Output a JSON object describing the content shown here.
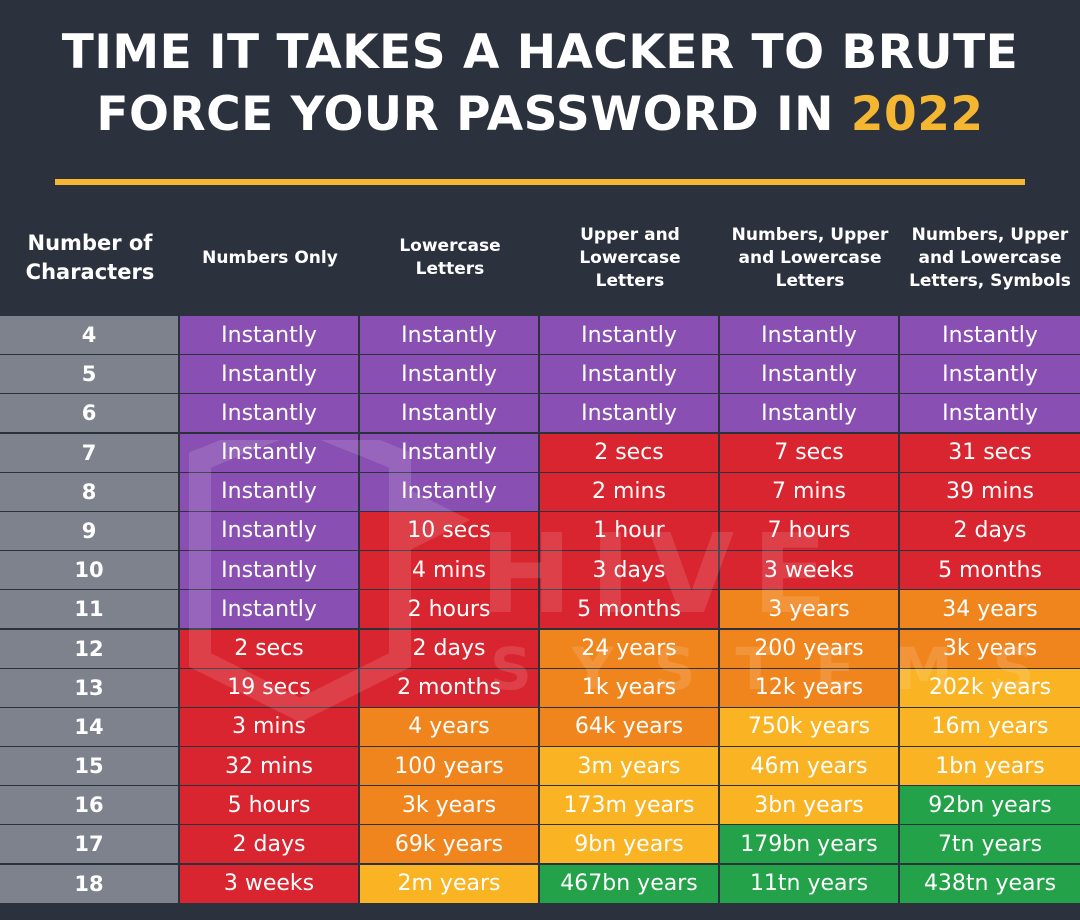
{
  "title": {
    "line1": "TIME IT TAKES A HACKER TO BRUTE",
    "line2": "FORCE YOUR PASSWORD IN",
    "year": "2022"
  },
  "watermark": {
    "brand": "HIVE",
    "sub": "SYSTEMS"
  },
  "colors": {
    "Instantly": "#8a4fb3",
    "red": "#d9252f",
    "orange": "#f0851e",
    "yellow": "#f9b323",
    "green": "#23a24a",
    "header_bg": "#2c313e",
    "accent": "#f5b731"
  },
  "table": {
    "columns": [
      "Number of\nCharacters",
      "Numbers Only",
      "Lowercase\nLetters",
      "Upper and\nLowercase\nLetters",
      "Numbers, Upper\nand Lowercase\nLetters",
      "Numbers, Upper\nand Lowercase\nLetters, Symbols"
    ],
    "rows": [
      {
        "n": "4",
        "cells": [
          {
            "t": "Instantly",
            "c": "purple"
          },
          {
            "t": "Instantly",
            "c": "purple"
          },
          {
            "t": "Instantly",
            "c": "purple"
          },
          {
            "t": "Instantly",
            "c": "purple"
          },
          {
            "t": "Instantly",
            "c": "purple"
          }
        ]
      },
      {
        "n": "5",
        "cells": [
          {
            "t": "Instantly",
            "c": "purple"
          },
          {
            "t": "Instantly",
            "c": "purple"
          },
          {
            "t": "Instantly",
            "c": "purple"
          },
          {
            "t": "Instantly",
            "c": "purple"
          },
          {
            "t": "Instantly",
            "c": "purple"
          }
        ]
      },
      {
        "n": "6",
        "cells": [
          {
            "t": "Instantly",
            "c": "purple"
          },
          {
            "t": "Instantly",
            "c": "purple"
          },
          {
            "t": "Instantly",
            "c": "purple"
          },
          {
            "t": "Instantly",
            "c": "purple"
          },
          {
            "t": "Instantly",
            "c": "purple"
          }
        ]
      },
      {
        "n": "7",
        "cells": [
          {
            "t": "Instantly",
            "c": "purple"
          },
          {
            "t": "Instantly",
            "c": "purple"
          },
          {
            "t": "2 secs",
            "c": "red"
          },
          {
            "t": "7 secs",
            "c": "red"
          },
          {
            "t": "31 secs",
            "c": "red"
          }
        ]
      },
      {
        "n": "8",
        "cells": [
          {
            "t": "Instantly",
            "c": "purple"
          },
          {
            "t": "Instantly",
            "c": "purple"
          },
          {
            "t": "2 mins",
            "c": "red"
          },
          {
            "t": "7 mins",
            "c": "red"
          },
          {
            "t": "39 mins",
            "c": "red"
          }
        ]
      },
      {
        "n": "9",
        "cells": [
          {
            "t": "Instantly",
            "c": "purple"
          },
          {
            "t": "10 secs",
            "c": "red"
          },
          {
            "t": "1 hour",
            "c": "red"
          },
          {
            "t": "7 hours",
            "c": "red"
          },
          {
            "t": "2 days",
            "c": "red"
          }
        ]
      },
      {
        "n": "10",
        "cells": [
          {
            "t": "Instantly",
            "c": "purple"
          },
          {
            "t": "4 mins",
            "c": "red"
          },
          {
            "t": "3 days",
            "c": "red"
          },
          {
            "t": "3 weeks",
            "c": "red"
          },
          {
            "t": "5 months",
            "c": "red"
          }
        ]
      },
      {
        "n": "11",
        "cells": [
          {
            "t": "Instantly",
            "c": "purple"
          },
          {
            "t": "2 hours",
            "c": "red"
          },
          {
            "t": "5 months",
            "c": "red"
          },
          {
            "t": "3 years",
            "c": "orange"
          },
          {
            "t": "34 years",
            "c": "orange"
          }
        ]
      },
      {
        "n": "12",
        "cells": [
          {
            "t": "2 secs",
            "c": "red"
          },
          {
            "t": "2 days",
            "c": "red"
          },
          {
            "t": "24 years",
            "c": "orange"
          },
          {
            "t": "200 years",
            "c": "orange"
          },
          {
            "t": "3k years",
            "c": "orange"
          }
        ]
      },
      {
        "n": "13",
        "cells": [
          {
            "t": "19 secs",
            "c": "red"
          },
          {
            "t": "2 months",
            "c": "red"
          },
          {
            "t": "1k years",
            "c": "orange"
          },
          {
            "t": "12k years",
            "c": "orange"
          },
          {
            "t": "202k years",
            "c": "yellow"
          }
        ]
      },
      {
        "n": "14",
        "cells": [
          {
            "t": "3 mins",
            "c": "red"
          },
          {
            "t": "4 years",
            "c": "orange"
          },
          {
            "t": "64k years",
            "c": "orange"
          },
          {
            "t": "750k years",
            "c": "yellow"
          },
          {
            "t": "16m years",
            "c": "yellow"
          }
        ]
      },
      {
        "n": "15",
        "cells": [
          {
            "t": "32 mins",
            "c": "red"
          },
          {
            "t": "100 years",
            "c": "orange"
          },
          {
            "t": "3m years",
            "c": "yellow"
          },
          {
            "t": "46m years",
            "c": "yellow"
          },
          {
            "t": "1bn years",
            "c": "yellow"
          }
        ]
      },
      {
        "n": "16",
        "cells": [
          {
            "t": "5 hours",
            "c": "red"
          },
          {
            "t": "3k years",
            "c": "orange"
          },
          {
            "t": "173m years",
            "c": "yellow"
          },
          {
            "t": "3bn years",
            "c": "yellow"
          },
          {
            "t": "92bn years",
            "c": "green"
          }
        ]
      },
      {
        "n": "17",
        "cells": [
          {
            "t": "2 days",
            "c": "red"
          },
          {
            "t": "69k years",
            "c": "orange"
          },
          {
            "t": "9bn years",
            "c": "yellow"
          },
          {
            "t": "179bn years",
            "c": "green"
          },
          {
            "t": "7tn years",
            "c": "green"
          }
        ]
      },
      {
        "n": "18",
        "cells": [
          {
            "t": "3 weeks",
            "c": "red"
          },
          {
            "t": "2m years",
            "c": "yellow"
          },
          {
            "t": "467bn years",
            "c": "green"
          },
          {
            "t": "11tn years",
            "c": "green"
          },
          {
            "t": "438tn years",
            "c": "green"
          }
        ]
      }
    ]
  }
}
